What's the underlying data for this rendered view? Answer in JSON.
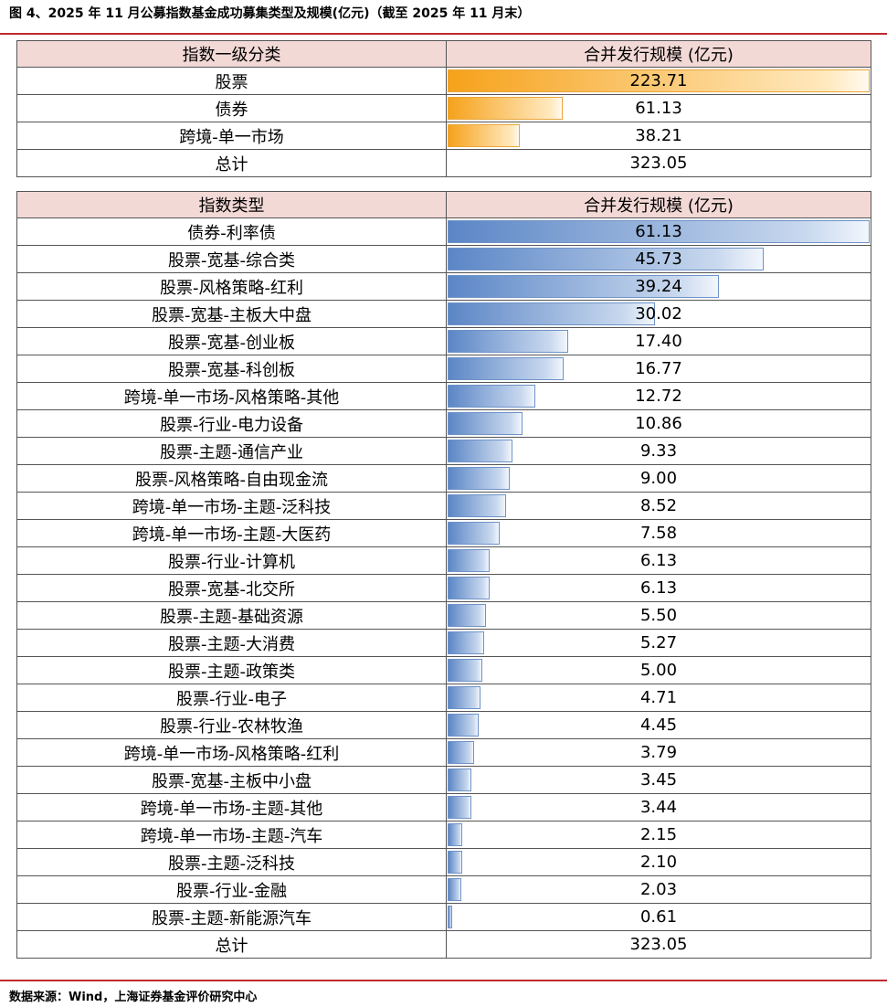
{
  "title": "图 4、2025 年 11 月公募指数基金成功募集类型及规模(亿元)（截至 2025 年 11 月末）",
  "source": "数据来源：Wind，上海证券基金评价研究中心",
  "colors": {
    "rule": "#c0282d",
    "header_bg": "#f3d9d6",
    "bar_orange": "#f6a21b",
    "bar_blue": "#5b86c6"
  },
  "table1": {
    "headers": [
      "指数一级分类",
      "合并发行规模 (亿元)"
    ],
    "rows": [
      {
        "label": "股票",
        "value": "223.71",
        "num": 223.71
      },
      {
        "label": "债券",
        "value": "61.13",
        "num": 61.13
      },
      {
        "label": "跨境-单一市场",
        "value": "38.21",
        "num": 38.21
      }
    ],
    "total": {
      "label": "总计",
      "value": "323.05"
    }
  },
  "table2": {
    "headers": [
      "指数类型",
      "合并发行规模 (亿元)"
    ],
    "rows": [
      {
        "label": "债券-利率债",
        "value": "61.13",
        "num": 61.13
      },
      {
        "label": "股票-宽基-综合类",
        "value": "45.73",
        "num": 45.73
      },
      {
        "label": "股票-风格策略-红利",
        "value": "39.24",
        "num": 39.24
      },
      {
        "label": "股票-宽基-主板大中盘",
        "value": "30.02",
        "num": 30.02
      },
      {
        "label": "股票-宽基-创业板",
        "value": "17.40",
        "num": 17.4
      },
      {
        "label": "股票-宽基-科创板",
        "value": "16.77",
        "num": 16.77
      },
      {
        "label": "跨境-单一市场-风格策略-其他",
        "value": "12.72",
        "num": 12.72
      },
      {
        "label": "股票-行业-电力设备",
        "value": "10.86",
        "num": 10.86
      },
      {
        "label": "股票-主题-通信产业",
        "value": "9.33",
        "num": 9.33
      },
      {
        "label": "股票-风格策略-自由现金流",
        "value": "9.00",
        "num": 9.0
      },
      {
        "label": "跨境-单一市场-主题-泛科技",
        "value": "8.52",
        "num": 8.52
      },
      {
        "label": "跨境-单一市场-主题-大医药",
        "value": "7.58",
        "num": 7.58
      },
      {
        "label": "股票-行业-计算机",
        "value": "6.13",
        "num": 6.13
      },
      {
        "label": "股票-宽基-北交所",
        "value": "6.13",
        "num": 6.13
      },
      {
        "label": "股票-主题-基础资源",
        "value": "5.50",
        "num": 5.5
      },
      {
        "label": "股票-主题-大消费",
        "value": "5.27",
        "num": 5.27
      },
      {
        "label": "股票-主题-政策类",
        "value": "5.00",
        "num": 5.0
      },
      {
        "label": "股票-行业-电子",
        "value": "4.71",
        "num": 4.71
      },
      {
        "label": "股票-行业-农林牧渔",
        "value": "4.45",
        "num": 4.45
      },
      {
        "label": "跨境-单一市场-风格策略-红利",
        "value": "3.79",
        "num": 3.79
      },
      {
        "label": "股票-宽基-主板中小盘",
        "value": "3.45",
        "num": 3.45
      },
      {
        "label": "跨境-单一市场-主题-其他",
        "value": "3.44",
        "num": 3.44
      },
      {
        "label": "跨境-单一市场-主题-汽车",
        "value": "2.15",
        "num": 2.15
      },
      {
        "label": "股票-主题-泛科技",
        "value": "2.10",
        "num": 2.1
      },
      {
        "label": "股票-行业-金融",
        "value": "2.03",
        "num": 2.03
      },
      {
        "label": "股票-主题-新能源汽车",
        "value": "0.61",
        "num": 0.61
      }
    ],
    "total": {
      "label": "总计",
      "value": "323.05"
    }
  },
  "chart_data": [
    {
      "type": "table",
      "headers": [
        "指数一级分类",
        "合并发行规模 (亿元)"
      ],
      "categories": [
        "股票",
        "债券",
        "跨境-单一市场"
      ],
      "values": [
        223.71,
        61.13,
        38.21
      ],
      "total": 323.05
    },
    {
      "type": "table",
      "headers": [
        "指数类型",
        "合并发行规模 (亿元)"
      ],
      "categories": [
        "债券-利率债",
        "股票-宽基-综合类",
        "股票-风格策略-红利",
        "股票-宽基-主板大中盘",
        "股票-宽基-创业板",
        "股票-宽基-科创板",
        "跨境-单一市场-风格策略-其他",
        "股票-行业-电力设备",
        "股票-主题-通信产业",
        "股票-风格策略-自由现金流",
        "跨境-单一市场-主题-泛科技",
        "跨境-单一市场-主题-大医药",
        "股票-行业-计算机",
        "股票-宽基-北交所",
        "股票-主题-基础资源",
        "股票-主题-大消费",
        "股票-主题-政策类",
        "股票-行业-电子",
        "股票-行业-农林牧渔",
        "跨境-单一市场-风格策略-红利",
        "股票-宽基-主板中小盘",
        "跨境-单一市场-主题-其他",
        "跨境-单一市场-主题-汽车",
        "股票-主题-泛科技",
        "股票-行业-金融",
        "股票-主题-新能源汽车"
      ],
      "values": [
        61.13,
        45.73,
        39.24,
        30.02,
        17.4,
        16.77,
        12.72,
        10.86,
        9.33,
        9.0,
        8.52,
        7.58,
        6.13,
        6.13,
        5.5,
        5.27,
        5.0,
        4.71,
        4.45,
        3.79,
        3.45,
        3.44,
        2.15,
        2.1,
        2.03,
        0.61
      ],
      "total": 323.05
    }
  ]
}
